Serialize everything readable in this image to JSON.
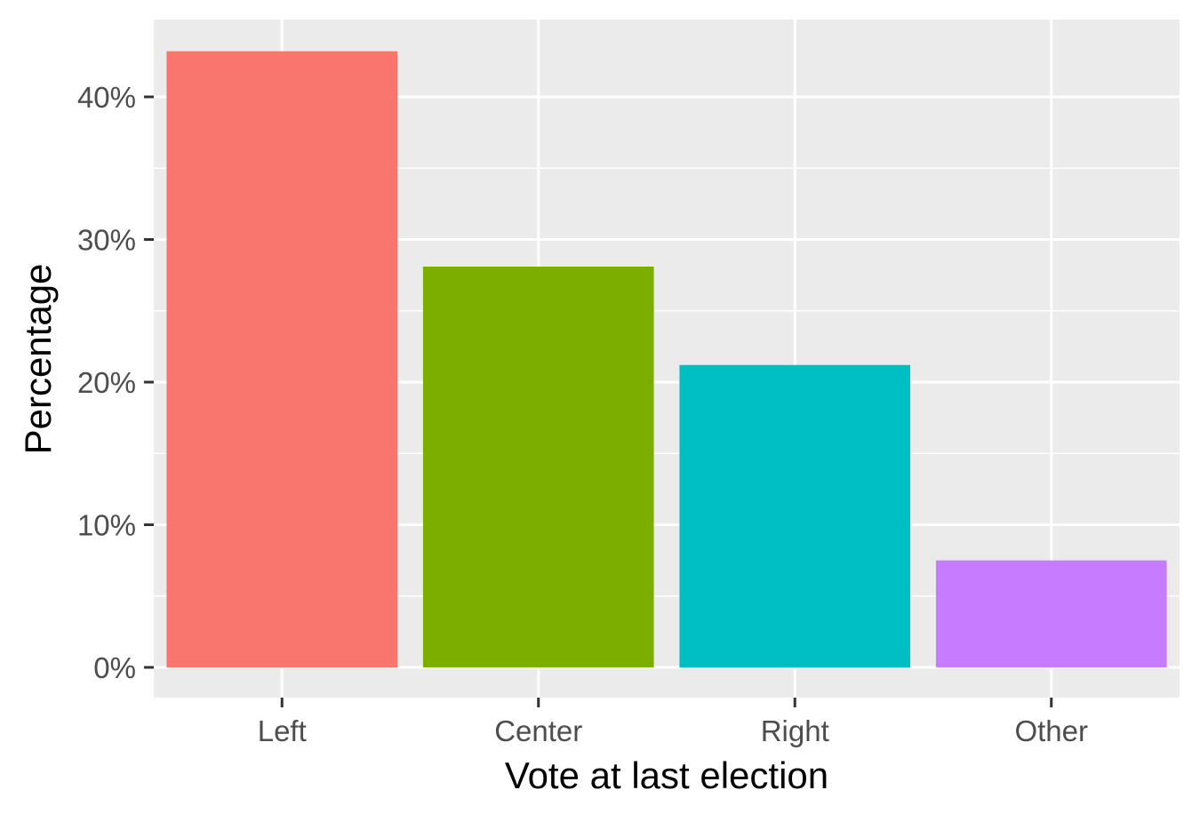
{
  "chart_data": {
    "type": "bar",
    "title": "",
    "xlabel": "Vote at last election",
    "ylabel": "Percentage",
    "categories": [
      "Left",
      "Center",
      "Right",
      "Other"
    ],
    "values": [
      43.2,
      28.1,
      21.2,
      7.5
    ],
    "value_unit": "percent",
    "ylim": [
      0,
      45.5
    ],
    "yticks": [
      0,
      10,
      20,
      30,
      40
    ],
    "ytick_labels": [
      "0%",
      "10%",
      "20%",
      "30%",
      "40%"
    ],
    "colors": [
      "#F8766D",
      "#7CAE00",
      "#00BFC4",
      "#C77CFF"
    ],
    "panel_background": "#EBEBEB",
    "grid": true,
    "grid_color": "#FFFFFF",
    "legend": "none"
  }
}
